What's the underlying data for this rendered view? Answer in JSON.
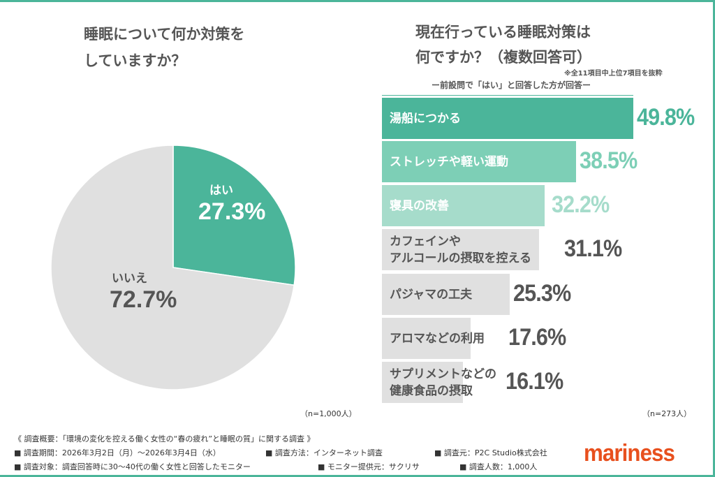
{
  "colors": {
    "accent": "#4bb59a",
    "mid": "#7dcfb6",
    "light": "#a6dccb",
    "gray": "#e0e0e0",
    "brand": "#e8501e"
  },
  "left": {
    "title_line1": "睡眠について何か対策を",
    "title_line2": "していますか？",
    "n": "（n=1,000人）"
  },
  "right": {
    "title_line1": "現在行っている睡眠対策は",
    "title_line2": "何ですか？（複数回答可）",
    "note": "※全11項目中上位7項目を抜粋",
    "subtitle": "ー前設問で「はい」と回答した方が回答ー",
    "n": "（n=273人）"
  },
  "chart_data": [
    {
      "type": "pie",
      "slices": [
        {
          "label": "はい",
          "value": 27.3,
          "value_label": "27.3%"
        },
        {
          "label": "いいえ",
          "value": 72.7,
          "value_label": "72.7%"
        }
      ]
    },
    {
      "type": "bar",
      "orientation": "horizontal",
      "categories": [
        "湯船につかる",
        "ストレッチや軽い運動",
        "寝具の改善",
        "カフェインや\nアルコールの摂取を控える",
        "パジャマの工夫",
        "アロマなどの利用",
        "サプリメントなどの\n健康食品の摂取"
      ],
      "values": [
        49.8,
        38.5,
        32.2,
        31.1,
        25.3,
        17.6,
        16.1
      ],
      "value_labels": [
        "49.8%",
        "38.5%",
        "32.2%",
        "31.1%",
        "25.3%",
        "17.6%",
        "16.1%"
      ]
    }
  ],
  "footer": {
    "title": "《 調査概要：「環境の変化を控える働く女性の“春の疲れ”と睡眠の質」に関する調査 》",
    "period": "■ 調査期間：2026年3月2日（月）～2026年3月4日（水）",
    "method": "■ 調査方法：インターネット調査",
    "source": "■ 調査元：P2C Studio株式会社",
    "target": "■ 調査対象：調査回答時に30～40代の働く女性と回答したモニター",
    "provider": "■ モニター提供元：サクリサ",
    "count": "■ 調査人数：1,000人"
  },
  "logo": "mariness"
}
